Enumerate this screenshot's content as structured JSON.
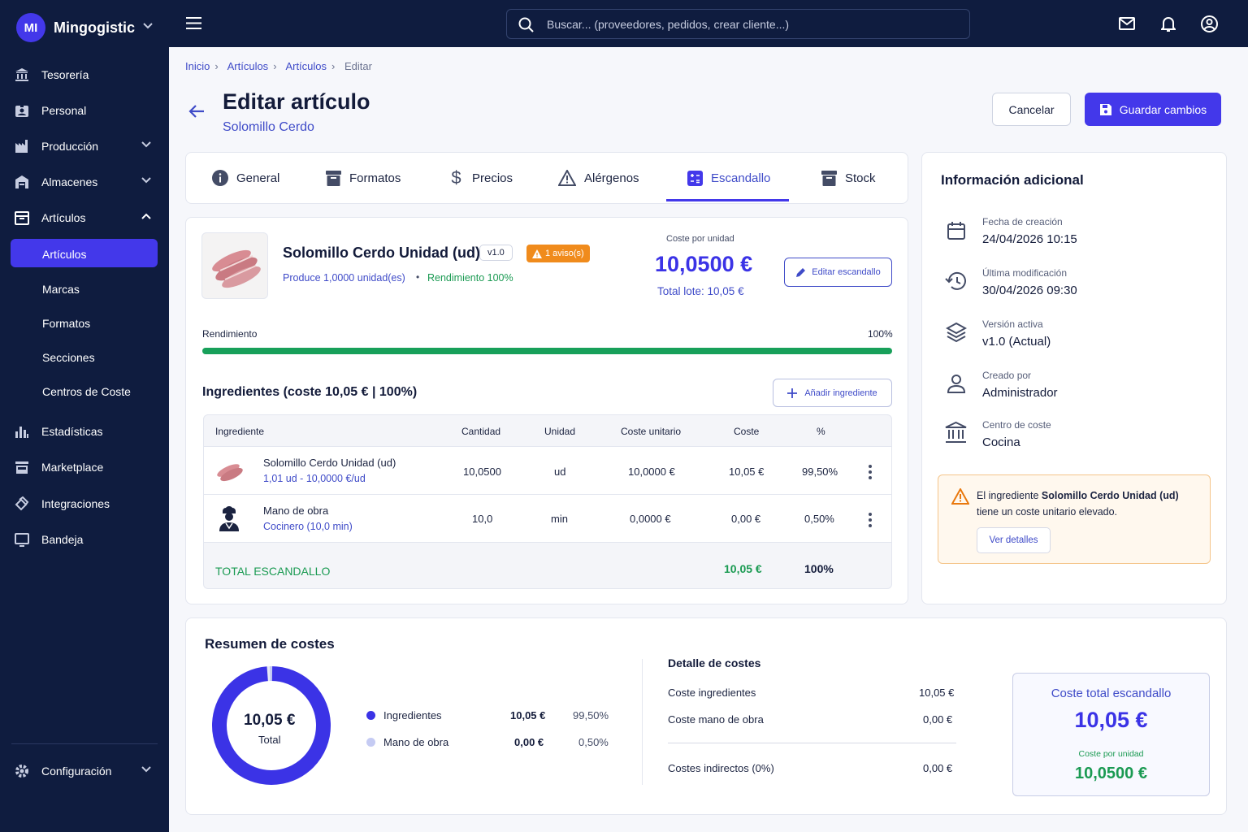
{
  "app": {
    "initials": "MI",
    "name": "Mingogistic"
  },
  "sidebar": {
    "items": [
      {
        "label": "Tesorería",
        "icon": "bank-icon"
      },
      {
        "label": "Personal",
        "icon": "id-badge-icon"
      },
      {
        "label": "Producción",
        "icon": "factory-icon"
      },
      {
        "label": "Almacenes",
        "icon": "warehouse-icon"
      },
      {
        "label": "Artículos",
        "icon": "box-icon"
      }
    ],
    "subitems": [
      "Artículos",
      "Marcas",
      "Formatos",
      "Secciones",
      "Centros de Coste"
    ],
    "items2": [
      {
        "label": "Estadísticas",
        "icon": "bar-chart-icon"
      },
      {
        "label": "Marketplace",
        "icon": "store-icon"
      },
      {
        "label": "Integraciones",
        "icon": "plug-icon"
      },
      {
        "label": "Bandeja",
        "icon": "inbox-icon"
      }
    ],
    "settings": "Configuración"
  },
  "topbar": {
    "search_placeholder": "Buscar... (proveedores, pedidos, crear cliente...)"
  },
  "breadcrumb": [
    "Inicio",
    "Artículos",
    "Artículos",
    "Editar"
  ],
  "page": {
    "title": "Editar artículo",
    "subtitle": "Solomillo Cerdo",
    "cancel": "Cancelar",
    "save": "Guardar cambios"
  },
  "tabs": [
    "General",
    "Formatos",
    "Precios",
    "Alérgenos",
    "Escandallo",
    "Stock"
  ],
  "product": {
    "name": "Solomillo Cerdo Unidad (ud)",
    "version": "v1.0",
    "warning": "1 aviso(s)",
    "produce": "Produce 1,0000 unidad(es)",
    "yield": "Rendimiento 100%",
    "cost_label": "Coste por unidad",
    "cost_value": "10,0500 €",
    "total_lote": "Total lote: 10,05 €",
    "edit_btn": "Editar escandallo"
  },
  "yield_bar": {
    "label": "Rendimiento",
    "value": "100%",
    "fraction": 1.0
  },
  "ingredients": {
    "title": "Ingredientes (coste 10,05 € | 100%)",
    "add_btn": "Añadir ingrediente",
    "columns": [
      "Ingrediente",
      "Cantidad",
      "Unidad",
      "Coste unitario",
      "Coste",
      "%"
    ],
    "rows": [
      {
        "name": "Solomillo Cerdo Unidad (ud)",
        "sub": "1,01 ud - 10,0000 €/ud",
        "qty": "10,0500",
        "unit": "ud",
        "unit_cost": "10,0000 €",
        "cost": "10,05 €",
        "pct": "99,50%"
      },
      {
        "name": "Mano de obra",
        "sub": "Cocinero (10,0 min)",
        "qty": "10,0",
        "unit": "min",
        "unit_cost": "0,0000 €",
        "cost": "0,00 €",
        "pct": "0,50%"
      }
    ],
    "total_label": "TOTAL ESCANDALLO",
    "total_cost": "10,05 €",
    "total_pct": "100%"
  },
  "info": {
    "title": "Información adicional",
    "items": [
      {
        "label": "Fecha de creación",
        "value": "24/04/2026 10:15"
      },
      {
        "label": "Última modificación",
        "value": "30/04/2026 09:30"
      },
      {
        "label": "Versión activa",
        "value": "v1.0 (Actual)"
      },
      {
        "label": "Creado por",
        "value": "Administrador"
      },
      {
        "label": "Centro de coste",
        "value": "Cocina"
      }
    ],
    "warning_pre": "El ingrediente ",
    "warning_bold": "Solomillo Cerdo Unidad (ud)",
    "warning_post": "tiene un coste unitario elevado.",
    "warning_btn": "Ver detalles"
  },
  "summary": {
    "title": "Resumen de costes",
    "donut_value": "10,05 €",
    "donut_label": "Total",
    "legend": [
      {
        "name": "Ingredientes",
        "value": "10,05 €",
        "pct": "99,50%",
        "color": "#3b33e6",
        "fraction": 0.995
      },
      {
        "name": "Mano de obra",
        "value": "0,00 €",
        "pct": "0,50%",
        "color": "#c5cbf3",
        "fraction": 0.005
      }
    ],
    "detail_title": "Detalle de costes",
    "details": [
      {
        "label": "Coste ingredientes",
        "value": "10,05 €"
      },
      {
        "label": "Coste mano de obra",
        "value": "0,00 €"
      },
      {
        "label": "Costes indirectos (0%)",
        "value": "0,00 €"
      }
    ],
    "total_title": "Coste total escandallo",
    "total_value": "10,05 €",
    "unit_label": "Coste por unidad",
    "unit_value": "10,0500 €"
  }
}
